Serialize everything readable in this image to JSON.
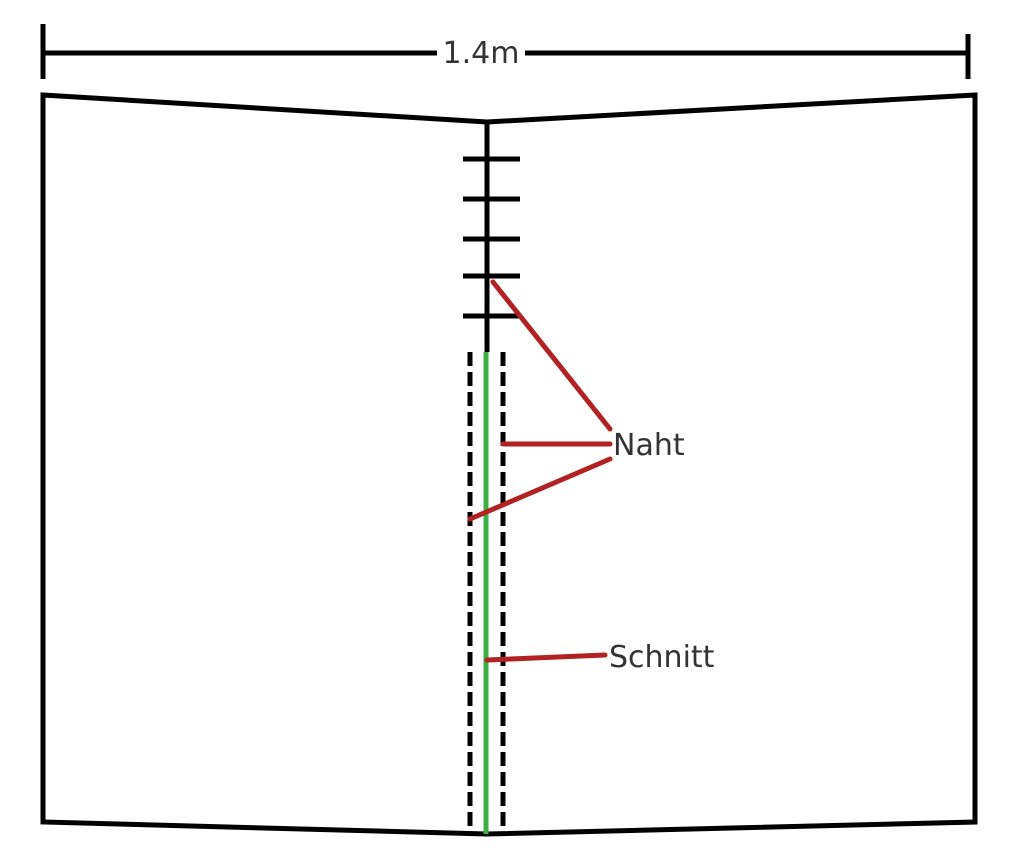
{
  "dimension": {
    "label": "1.4m"
  },
  "labels": {
    "seam": "Naht",
    "cut": "Schnitt"
  },
  "colors": {
    "outline": "#000000",
    "leader": "#b22222",
    "cut_line": "#3cb043",
    "label_text": "#333333",
    "background": "#ffffff"
  }
}
